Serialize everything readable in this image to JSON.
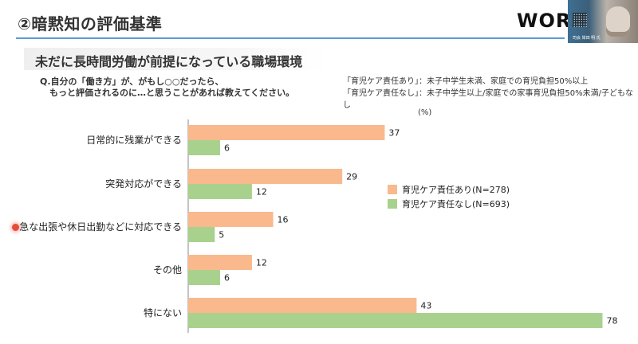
{
  "header": {
    "title": "②暗黙知の評価基準",
    "logo": "WOR",
    "video_caption": "司会 岸田 明 氏"
  },
  "slide": {
    "subtitle": "未だに長時間労働が前提になっている職場環境",
    "question_line1": "Q.自分の「働き方」が、がもし○○だったら、",
    "question_line2": "もっと評価されるのに…と思うことがあれば教えてください。",
    "definition1": "「育児ケア責任あり」：未子中学生未満、家庭での育児負担50%以上",
    "definition2": "「育児ケア責任なし」：未子中学生以上/家庭での家事育児負担50%未満/子どもなし",
    "unit": "(%)"
  },
  "colors": {
    "series_with_care": "#f9b98d",
    "series_without_care": "#a9d18e",
    "axis": "#888888",
    "accent_rule": "#5a9ad6"
  },
  "chart_data": {
    "type": "bar",
    "orientation": "horizontal",
    "categories": [
      "日常的に残業ができる",
      "突発対応ができる",
      "急な出張や休日出勤などに対応できる",
      "その他",
      "特にない"
    ],
    "series": [
      {
        "name": "育児ケア責任あり(N=278)",
        "values": [
          37,
          29,
          16,
          12,
          43
        ]
      },
      {
        "name": "育児ケア責任なし(N=693)",
        "values": [
          6,
          12,
          5,
          6,
          78
        ]
      }
    ],
    "xlim": [
      0,
      80
    ],
    "legend_position": "right-middle",
    "grid": false
  }
}
